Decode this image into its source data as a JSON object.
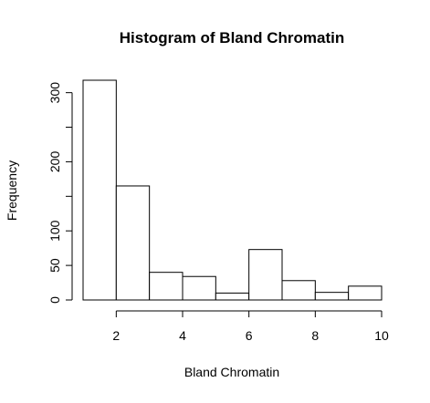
{
  "chart_data": {
    "type": "bar",
    "title": "Histogram of Bland Chromatin",
    "xlabel": "Bland Chromatin",
    "ylabel": "Frequency",
    "bins": [
      {
        "start": 1,
        "end": 2,
        "value": 318
      },
      {
        "start": 2,
        "end": 3,
        "value": 165
      },
      {
        "start": 3,
        "end": 4,
        "value": 40
      },
      {
        "start": 4,
        "end": 5,
        "value": 34
      },
      {
        "start": 5,
        "end": 6,
        "value": 10
      },
      {
        "start": 6,
        "end": 7,
        "value": 73
      },
      {
        "start": 7,
        "end": 8,
        "value": 28
      },
      {
        "start": 8,
        "end": 9,
        "value": 11
      },
      {
        "start": 9,
        "end": 10,
        "value": 20
      }
    ],
    "xlim": [
      1,
      10
    ],
    "ylim": [
      0,
      318
    ],
    "x_ticks": [
      2,
      4,
      6,
      8,
      10
    ],
    "y_ticks": [
      0,
      50,
      100,
      150,
      200,
      250,
      300
    ],
    "y_tick_labels": [
      "0",
      "50",
      "100",
      "",
      "200",
      "",
      "300"
    ],
    "grid": false,
    "legend": "none"
  }
}
